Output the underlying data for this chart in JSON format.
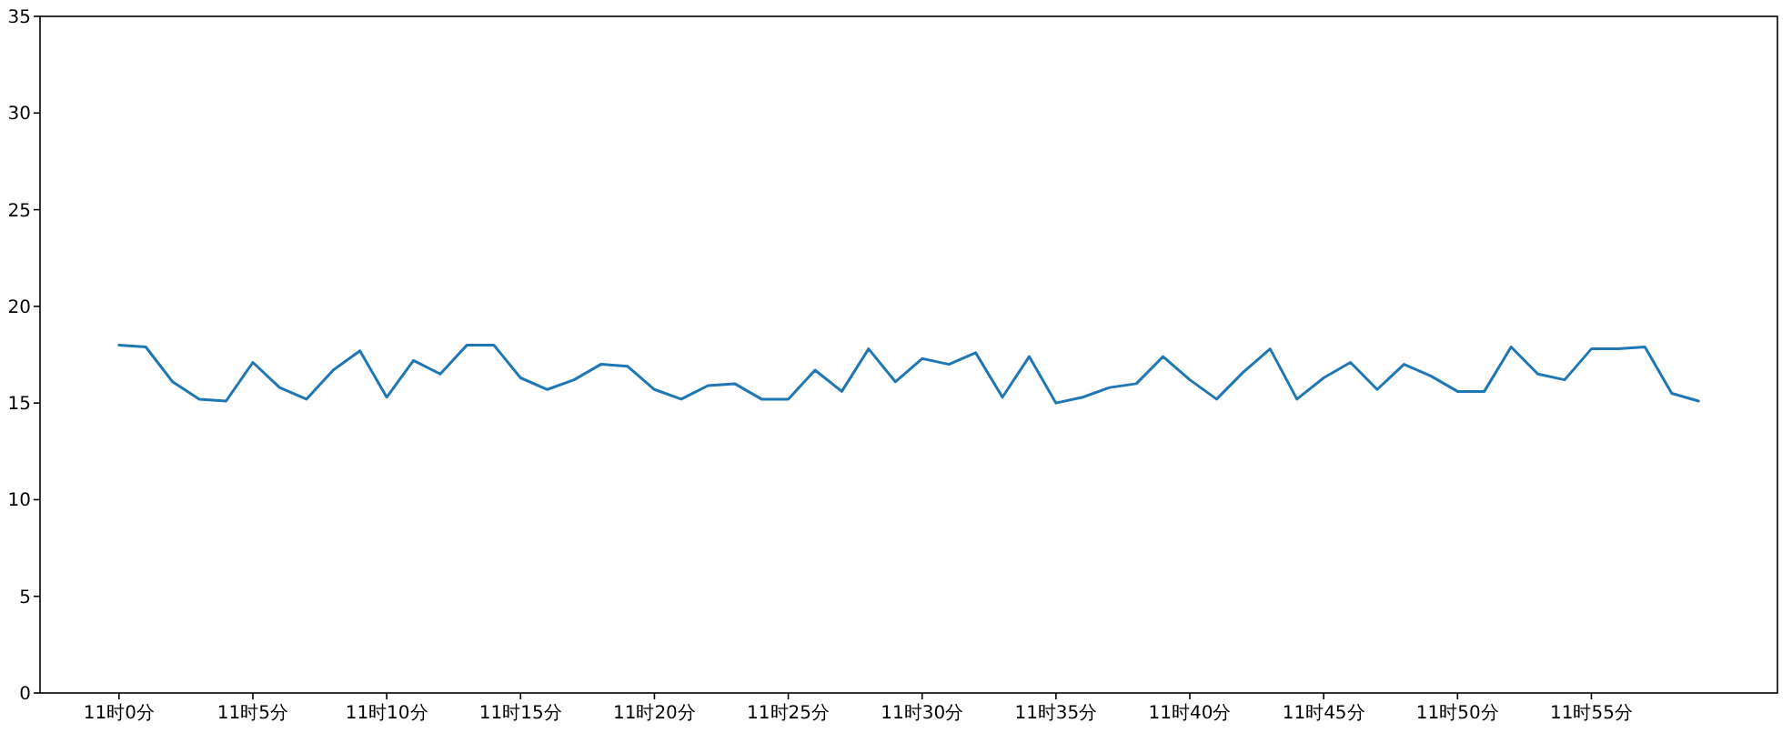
{
  "chart_data": {
    "type": "line",
    "categories": [
      "11时0分",
      null,
      null,
      null,
      null,
      "11时5分",
      null,
      null,
      null,
      null,
      "11时10分",
      null,
      null,
      null,
      null,
      "11时15分",
      null,
      null,
      null,
      null,
      "11时20分",
      null,
      null,
      null,
      null,
      "11时25分",
      null,
      null,
      null,
      null,
      "11时30分",
      null,
      null,
      null,
      null,
      "11时35分",
      null,
      null,
      null,
      null,
      "11时40分",
      null,
      null,
      null,
      null,
      "11时45分",
      null,
      null,
      null,
      null,
      "11时50分",
      null,
      null,
      null,
      null,
      "11时55分",
      null,
      null,
      null,
      null
    ],
    "series": [
      {
        "color": "#1f77b4",
        "values": [
          18.0,
          17.9,
          16.1,
          15.2,
          15.1,
          17.1,
          15.8,
          15.2,
          16.7,
          17.7,
          15.3,
          17.2,
          16.5,
          18.0,
          18.0,
          16.3,
          15.7,
          16.2,
          17.0,
          16.9,
          15.7,
          15.2,
          15.9,
          16.0,
          15.2,
          15.2,
          16.7,
          15.6,
          17.8,
          16.1,
          17.3,
          17.0,
          17.6,
          15.3,
          17.4,
          15.0,
          15.3,
          15.8,
          16.0,
          17.4,
          16.2,
          15.2,
          16.6,
          17.8,
          15.2,
          16.3,
          17.1,
          15.7,
          17.0,
          16.4,
          15.6,
          15.6,
          17.9,
          16.5,
          16.2,
          17.8,
          17.8,
          17.9,
          15.5,
          15.1
        ]
      }
    ],
    "ylim": [
      0,
      35
    ],
    "yticks": [
      0,
      5,
      10,
      15,
      20,
      25,
      30,
      35
    ],
    "grid": false
  }
}
